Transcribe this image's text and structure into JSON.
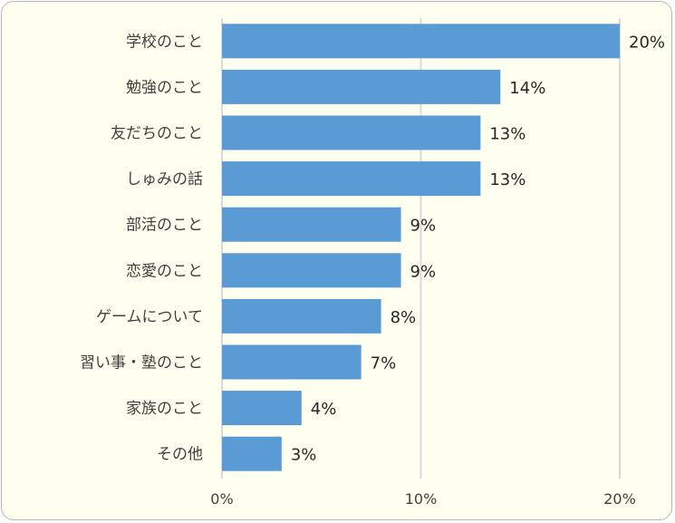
{
  "chart_data": {
    "type": "bar",
    "orientation": "horizontal",
    "categories": [
      "学校のこと",
      "勉強のこと",
      "友だちのこと",
      "しゅみの話",
      "部活のこと",
      "恋愛のこと",
      "ゲームについて",
      "習い事・塾のこと",
      "家族のこと",
      "その他"
    ],
    "values": [
      20,
      14,
      13,
      13,
      9,
      9,
      8,
      7,
      4,
      3
    ],
    "value_labels": [
      "20%",
      "14%",
      "13%",
      "13%",
      "9%",
      "9%",
      "8%",
      "7%",
      "4%",
      "3%"
    ],
    "xlim": [
      0,
      20
    ],
    "x_ticks": [
      0,
      10,
      20
    ],
    "x_tick_labels": [
      "0%",
      "10%",
      "20%"
    ],
    "grid": "vertical",
    "legend": "none",
    "bar_color": "#5b9bd5",
    "grid_color": "#d9d9d9",
    "background_color": "#fffff0"
  }
}
